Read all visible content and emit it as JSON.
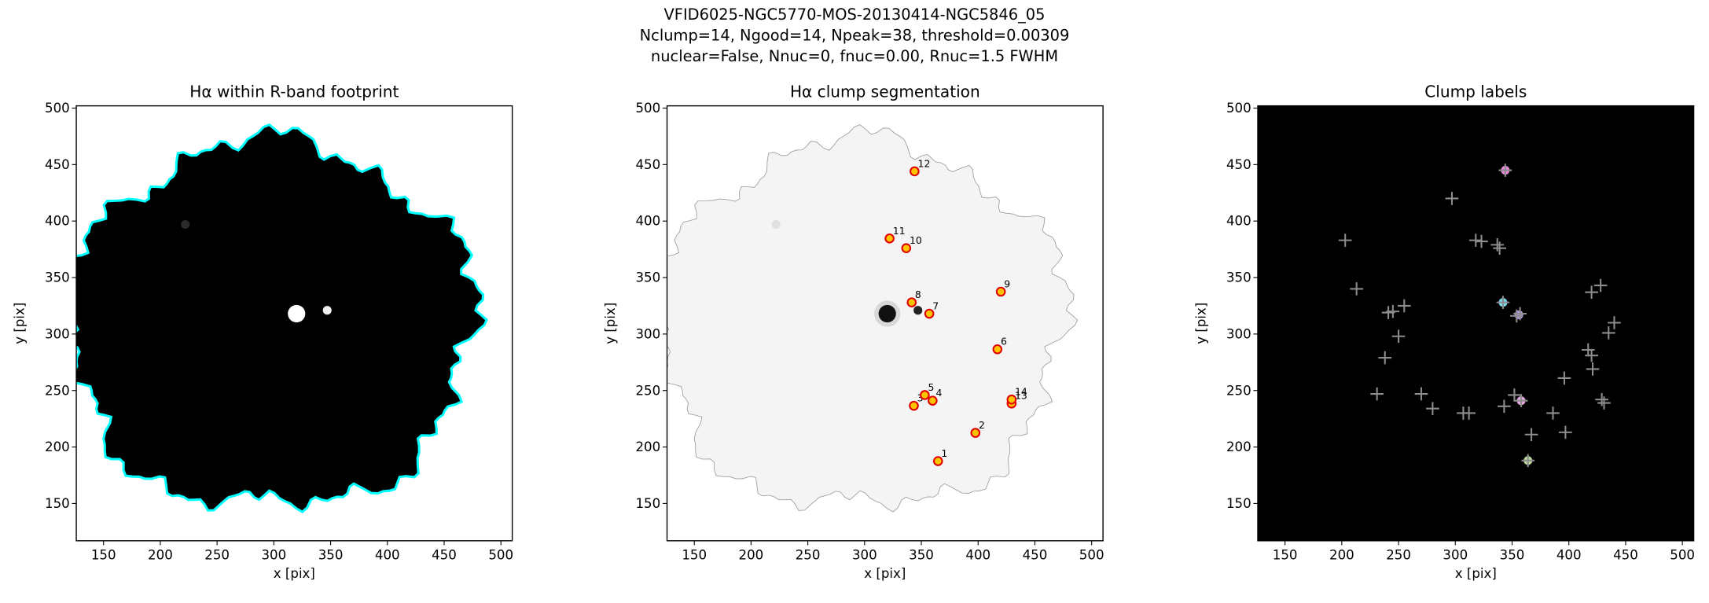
{
  "suptitle": [
    "VFID6025-NGC5770-MOS-20130414-NGC5846_05",
    "Nclump=14, Ngood=14, Npeak=38, threshold=0.00309",
    "nuclear=False, Nnuc=0, fnuc=0.00, Rnuc=1.5 FWHM"
  ],
  "chart_data": [
    {
      "type": "image",
      "image": "footprint",
      "title": "Hα within R-band footprint",
      "xlabel": "x [pix]",
      "ylabel": "y [pix]",
      "xlim": [
        126,
        510
      ],
      "ylim": [
        117,
        502
      ],
      "xticks": [
        150,
        200,
        250,
        300,
        350,
        400,
        450,
        500
      ],
      "yticks": [
        150,
        200,
        250,
        300,
        350,
        400,
        450,
        500
      ],
      "background": "#000000",
      "outline_color": "#00ffff"
    },
    {
      "type": "scatter",
      "image": "segmentation",
      "title": "Hα clump segmentation",
      "xlabel": "x [pix]",
      "ylabel": "y [pix]",
      "xlim": [
        126,
        510
      ],
      "ylim": [
        117,
        502
      ],
      "xticks": [
        150,
        200,
        250,
        300,
        350,
        400,
        450,
        500
      ],
      "yticks": [
        150,
        200,
        250,
        300,
        350,
        400,
        450,
        500
      ],
      "background": "#f4f4f4",
      "outline_color": "#9a9a9a",
      "x": [
        364.7,
        397.6,
        343.4,
        359.9,
        353,
        417,
        357,
        341.5,
        420,
        336.7,
        322,
        344,
        429.5,
        429.5
      ],
      "y": [
        187.5,
        212.5,
        236.5,
        241,
        246,
        286.5,
        318,
        328,
        337.5,
        376,
        384.6,
        444,
        238.5,
        242
      ],
      "labels": [
        1,
        2,
        3,
        4,
        5,
        6,
        7,
        8,
        9,
        10,
        11,
        12,
        13,
        14
      ],
      "color": "#ffc400",
      "edge_color": "#e00000",
      "label_color": "#e00000"
    },
    {
      "type": "scatter",
      "image": "labels",
      "title": "Clump labels",
      "xlabel": "x [pix]",
      "ylabel": "y [pix]",
      "xlim": [
        126,
        510
      ],
      "ylim": [
        117,
        502
      ],
      "xticks": [
        150,
        200,
        250,
        300,
        350,
        400,
        450,
        500
      ],
      "yticks": [
        150,
        200,
        250,
        300,
        350,
        400,
        450,
        500
      ],
      "background": "#000000",
      "series": [
        {
          "marker": "blob",
          "colors": [
            "#e88ad8",
            "#b89cf0",
            "#7ad8e8",
            "#e6a8e0",
            "#b8d89a"
          ],
          "x": [
            344,
            356,
            342,
            358,
            364
          ],
          "y": [
            445,
            317,
            328,
            241,
            188
          ]
        },
        {
          "marker": "+",
          "color": "#8c8c8c",
          "x": [
            203,
            213,
            231,
            238,
            241,
            245,
            250,
            255,
            270,
            280,
            297,
            307,
            312,
            318,
            323,
            337,
            339,
            344,
            342,
            354,
            357,
            343,
            352,
            358,
            364,
            367,
            386,
            396,
            397,
            417,
            420,
            420,
            421,
            428,
            429,
            431,
            435,
            440
          ],
          "y": [
            383,
            340,
            247,
            279,
            319,
            320,
            298,
            325,
            247,
            234,
            420,
            230,
            230,
            383,
            382,
            379,
            376,
            445,
            328,
            316,
            318,
            236,
            246,
            241,
            188,
            211,
            230,
            261,
            213,
            286,
            337,
            281,
            269,
            343,
            242,
            239,
            301,
            310
          ]
        }
      ]
    }
  ]
}
